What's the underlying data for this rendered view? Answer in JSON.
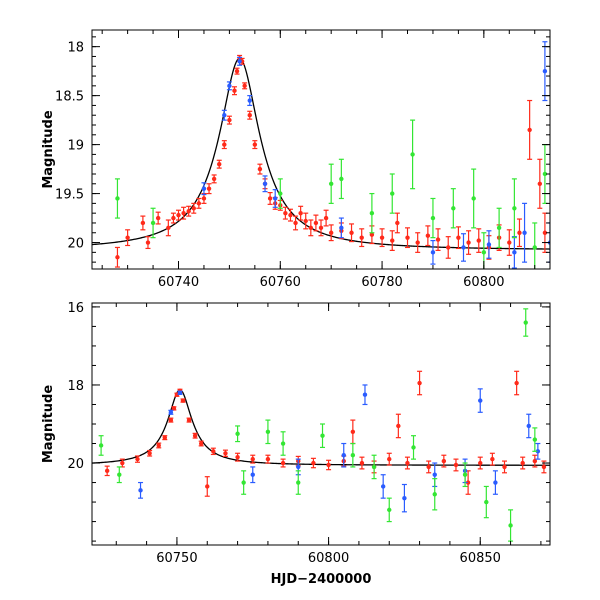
{
  "chart_data": [
    {
      "type": "scatter",
      "panel": "top",
      "xlabel": "",
      "ylabel": "Magnitude",
      "xlim": [
        60723,
        60813
      ],
      "ylim": [
        20.27,
        17.83
      ],
      "y_inverted": true,
      "xticks": [
        60740,
        60760,
        60780,
        60800
      ],
      "xtick_labels": [
        "60740",
        "60760",
        "60780",
        "60800"
      ],
      "yticks": [
        18,
        18.5,
        19,
        19.5,
        20
      ],
      "ytick_labels": [
        "18",
        "18.5",
        "19",
        "19.5",
        "20"
      ],
      "model": {
        "peak_x": 60752.0,
        "peak_mag": 18.12,
        "base_mag": 20.08,
        "tau": 3.2,
        "x": [
          60723,
          60735,
          60745,
          60749,
          60752,
          60755,
          60760,
          60770,
          60790,
          60813
        ],
        "y": [
          20.0,
          19.8,
          19.35,
          18.75,
          18.12,
          18.75,
          19.45,
          19.85,
          20.0,
          20.05
        ]
      },
      "series": [
        {
          "color": "#ff2a1a",
          "points": [
            [
              60728,
              20.15,
              0.1
            ],
            [
              60730,
              19.95,
              0.08
            ],
            [
              60733,
              19.8,
              0.07
            ],
            [
              60734,
              20.0,
              0.06
            ],
            [
              60736,
              19.75,
              0.06
            ],
            [
              60738,
              19.85,
              0.08
            ],
            [
              60739,
              19.75,
              0.05
            ],
            [
              60740,
              19.72,
              0.05
            ],
            [
              60741,
              19.7,
              0.06
            ],
            [
              60742,
              19.68,
              0.05
            ],
            [
              60743,
              19.65,
              0.05
            ],
            [
              60744,
              19.6,
              0.05
            ],
            [
              60745,
              19.55,
              0.05
            ],
            [
              60746,
              19.45,
              0.05
            ],
            [
              60747,
              19.35,
              0.04
            ],
            [
              60748,
              19.2,
              0.04
            ],
            [
              60749,
              19.0,
              0.04
            ],
            [
              60750,
              18.75,
              0.04
            ],
            [
              60751,
              18.45,
              0.04
            ],
            [
              60751.5,
              18.25,
              0.03
            ],
            [
              60752,
              18.12,
              0.03
            ],
            [
              60752.5,
              18.15,
              0.03
            ],
            [
              60753,
              18.4,
              0.03
            ],
            [
              60754,
              18.7,
              0.04
            ],
            [
              60755,
              19.0,
              0.04
            ],
            [
              60756,
              19.25,
              0.05
            ],
            [
              60757,
              19.4,
              0.05
            ],
            [
              60758,
              19.55,
              0.06
            ],
            [
              60759,
              19.6,
              0.06
            ],
            [
              60760,
              19.62,
              0.05
            ],
            [
              60761,
              19.7,
              0.06
            ],
            [
              60762,
              19.72,
              0.06
            ],
            [
              60763,
              19.8,
              0.07
            ],
            [
              60764,
              19.7,
              0.07
            ],
            [
              60765,
              19.78,
              0.08
            ],
            [
              60766,
              19.85,
              0.08
            ],
            [
              60767,
              19.8,
              0.08
            ],
            [
              60768,
              19.85,
              0.08
            ],
            [
              60769,
              19.75,
              0.08
            ],
            [
              60770,
              19.9,
              0.08
            ],
            [
              60772,
              19.88,
              0.08
            ],
            [
              60774,
              19.9,
              0.09
            ],
            [
              60776,
              19.95,
              0.09
            ],
            [
              60778,
              19.92,
              0.09
            ],
            [
              60780,
              19.95,
              0.09
            ],
            [
              60782,
              19.98,
              0.1
            ],
            [
              60783,
              19.8,
              0.1
            ],
            [
              60785,
              19.95,
              0.1
            ],
            [
              60787,
              20.0,
              0.1
            ],
            [
              60789,
              19.93,
              0.1
            ],
            [
              60791,
              19.97,
              0.11
            ],
            [
              60793,
              20.05,
              0.11
            ],
            [
              60795,
              19.95,
              0.11
            ],
            [
              60797,
              20.0,
              0.12
            ],
            [
              60799,
              19.98,
              0.12
            ],
            [
              60801,
              20.05,
              0.12
            ],
            [
              60803,
              19.95,
              0.13
            ],
            [
              60805,
              20.0,
              0.13
            ],
            [
              60807,
              19.9,
              0.14
            ],
            [
              60809,
              18.85,
              0.3
            ],
            [
              60811,
              19.4,
              0.25
            ],
            [
              60812,
              19.9,
              0.2
            ]
          ]
        },
        {
          "color": "#2a5cff",
          "points": [
            [
              60745,
              19.45,
              0.06
            ],
            [
              60749,
              18.7,
              0.05
            ],
            [
              60750,
              18.4,
              0.04
            ],
            [
              60752,
              18.15,
              0.04
            ],
            [
              60754,
              18.55,
              0.05
            ],
            [
              60757,
              19.4,
              0.08
            ],
            [
              60759,
              19.55,
              0.09
            ],
            [
              60772,
              19.85,
              0.1
            ],
            [
              60790,
              20.1,
              0.12
            ],
            [
              60796,
              20.05,
              0.14
            ],
            [
              60801,
              20.02,
              0.14
            ],
            [
              60806,
              20.1,
              0.16
            ],
            [
              60808,
              19.9,
              0.3
            ],
            [
              60812,
              18.25,
              0.3
            ],
            [
              60813,
              20.0,
              0.2
            ]
          ]
        },
        {
          "color": "#33e633",
          "points": [
            [
              60728,
              19.55,
              0.2
            ],
            [
              60735,
              19.8,
              0.15
            ],
            [
              60760,
              19.5,
              0.15
            ],
            [
              60770,
              19.4,
              0.2
            ],
            [
              60772,
              19.35,
              0.2
            ],
            [
              60778,
              19.7,
              0.2
            ],
            [
              60782,
              19.5,
              0.2
            ],
            [
              60786,
              19.1,
              0.35
            ],
            [
              60790,
              19.75,
              0.2
            ],
            [
              60794,
              19.65,
              0.2
            ],
            [
              60798,
              19.55,
              0.3
            ],
            [
              60800,
              20.1,
              0.2
            ],
            [
              60803,
              19.85,
              0.2
            ],
            [
              60806,
              19.65,
              0.3
            ],
            [
              60810,
              20.05,
              0.25
            ],
            [
              60812,
              19.3,
              0.3
            ]
          ]
        }
      ]
    },
    {
      "type": "scatter",
      "panel": "bottom",
      "xlabel": "HJD−2400000",
      "ylabel": "Magnitude",
      "xlim": [
        60722,
        60873
      ],
      "ylim": [
        22.1,
        15.9
      ],
      "y_inverted": true,
      "xticks": [
        60750,
        60800,
        60850
      ],
      "xtick_labels": [
        "60750",
        "60800",
        "60850"
      ],
      "yticks": [
        16,
        18,
        20
      ],
      "ytick_labels": [
        "16",
        "18",
        "20"
      ],
      "model": {
        "peak_x": 60751.0,
        "peak_mag": 18.12,
        "base_mag": 20.06,
        "tau": 3.2,
        "x": [
          60722,
          60740,
          60748,
          60751,
          60754,
          60765,
          60800,
          60873
        ],
        "y": [
          20.0,
          19.55,
          18.7,
          18.12,
          18.7,
          19.75,
          20.0,
          20.05
        ]
      },
      "series": [
        {
          "color": "#ff2a1a",
          "points": [
            [
              60727,
              20.2,
              0.12
            ],
            [
              60732,
              20.0,
              0.1
            ],
            [
              60737,
              19.9,
              0.08
            ],
            [
              60741,
              19.75,
              0.07
            ],
            [
              60744,
              19.55,
              0.06
            ],
            [
              60746,
              19.35,
              0.05
            ],
            [
              60748,
              18.9,
              0.05
            ],
            [
              60749,
              18.6,
              0.04
            ],
            [
              60750,
              18.25,
              0.04
            ],
            [
              60751,
              18.15,
              0.04
            ],
            [
              60752,
              18.4,
              0.04
            ],
            [
              60754,
              18.9,
              0.05
            ],
            [
              60756,
              19.3,
              0.06
            ],
            [
              60758,
              19.5,
              0.06
            ],
            [
              60760,
              20.6,
              0.25
            ],
            [
              60762,
              19.7,
              0.08
            ],
            [
              60766,
              19.75,
              0.08
            ],
            [
              60770,
              19.85,
              0.1
            ],
            [
              60775,
              19.9,
              0.1
            ],
            [
              60780,
              19.9,
              0.1
            ],
            [
              60785,
              20.0,
              0.1
            ],
            [
              60790,
              19.95,
              0.12
            ],
            [
              60795,
              20.0,
              0.12
            ],
            [
              60800,
              20.05,
              0.12
            ],
            [
              60805,
              19.95,
              0.13
            ],
            [
              60808,
              19.2,
              0.3
            ],
            [
              60811,
              20.0,
              0.15
            ],
            [
              60815,
              20.1,
              0.15
            ],
            [
              60820,
              19.9,
              0.15
            ],
            [
              60823,
              19.05,
              0.3
            ],
            [
              60826,
              20.0,
              0.15
            ],
            [
              60830,
              17.95,
              0.3
            ],
            [
              60833,
              20.1,
              0.15
            ],
            [
              60838,
              19.95,
              0.15
            ],
            [
              60842,
              20.05,
              0.15
            ],
            [
              60846,
              20.5,
              0.3
            ],
            [
              60850,
              20.0,
              0.15
            ],
            [
              60854,
              19.9,
              0.15
            ],
            [
              60858,
              20.1,
              0.15
            ],
            [
              60862,
              17.95,
              0.3
            ],
            [
              60864,
              20.0,
              0.15
            ],
            [
              60868,
              19.95,
              0.15
            ],
            [
              60871,
              20.1,
              0.15
            ]
          ]
        },
        {
          "color": "#2a5cff",
          "points": [
            [
              60738,
              20.7,
              0.2
            ],
            [
              60748,
              18.7,
              0.05
            ],
            [
              60751,
              18.2,
              0.04
            ],
            [
              60775,
              20.3,
              0.2
            ],
            [
              60790,
              20.1,
              0.2
            ],
            [
              60805,
              19.8,
              0.3
            ],
            [
              60812,
              18.25,
              0.25
            ],
            [
              60818,
              20.6,
              0.3
            ],
            [
              60825,
              20.9,
              0.35
            ],
            [
              60835,
              20.3,
              0.3
            ],
            [
              60845,
              20.2,
              0.3
            ],
            [
              60850,
              18.4,
              0.3
            ],
            [
              60855,
              20.5,
              0.3
            ],
            [
              60866,
              19.05,
              0.3
            ],
            [
              60869,
              19.7,
              0.2
            ]
          ]
        },
        {
          "color": "#33e633",
          "points": [
            [
              60725,
              19.55,
              0.25
            ],
            [
              60731,
              20.3,
              0.2
            ],
            [
              60770,
              19.25,
              0.2
            ],
            [
              60772,
              20.5,
              0.3
            ],
            [
              60780,
              19.2,
              0.3
            ],
            [
              60785,
              19.5,
              0.3
            ],
            [
              60790,
              20.5,
              0.3
            ],
            [
              60798,
              19.3,
              0.3
            ],
            [
              60808,
              19.8,
              0.3
            ],
            [
              60815,
              20.1,
              0.3
            ],
            [
              60820,
              21.2,
              0.3
            ],
            [
              60828,
              19.6,
              0.3
            ],
            [
              60835,
              20.8,
              0.4
            ],
            [
              60845,
              20.3,
              0.3
            ],
            [
              60852,
              21.0,
              0.4
            ],
            [
              60860,
              21.6,
              0.4
            ],
            [
              60865,
              16.4,
              0.35
            ],
            [
              60868,
              19.4,
              0.3
            ]
          ]
        }
      ]
    }
  ]
}
